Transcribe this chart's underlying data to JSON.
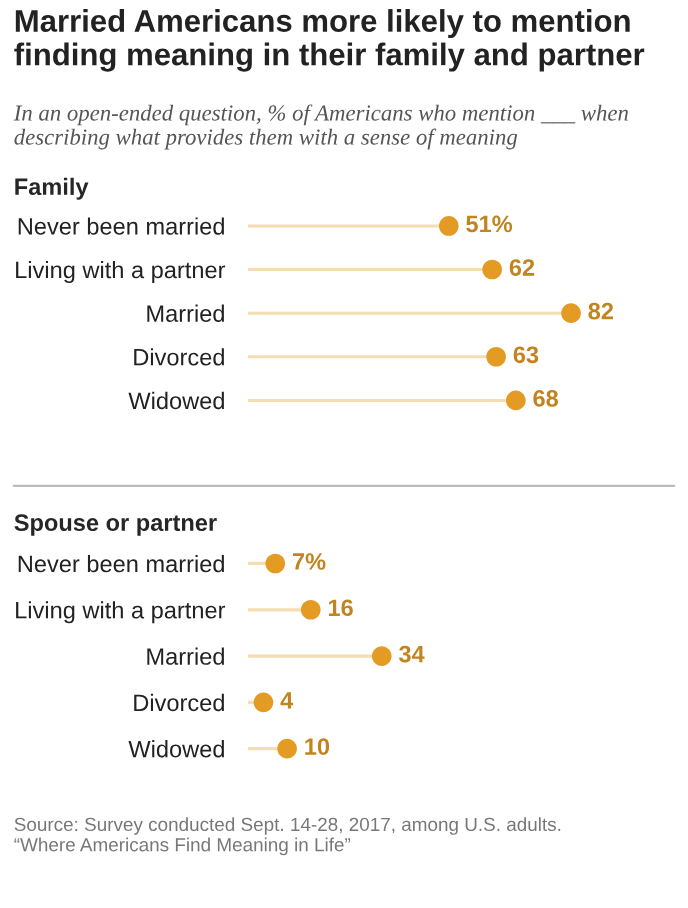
{
  "chart_data": [
    {
      "type": "lollipop",
      "orientation": "horizontal",
      "title": "Married Americans more likely to mention finding meaning in their family and partner",
      "subtitle": "In an open-ended question, % of Americans who mention ___ when describing what provides them with a sense of meaning",
      "ylabel": "Family",
      "tick_labels": "y",
      "categories": [
        "Never been married",
        "Living with a partner",
        "Married",
        "Divorced",
        "Widowed"
      ],
      "series": [
        {
          "color": "#e39b24",
          "values": [
            51,
            62,
            82,
            63,
            68
          ],
          "value_labels": [
            "51%",
            "62",
            "82",
            "63",
            "68"
          ]
        }
      ]
    },
    {
      "type": "lollipop",
      "orientation": "horizontal",
      "ylabel": "Spouse or partner",
      "tick_labels": "y",
      "categories": [
        "Never been married",
        "Living with a partner",
        "Married",
        "Divorced",
        "Widowed"
      ],
      "series": [
        {
          "color": "#e39b24",
          "values": [
            7,
            16,
            34,
            4,
            10
          ],
          "value_labels": [
            "7%",
            "16",
            "34",
            "4",
            "10"
          ]
        }
      ],
      "annotations": [
        "Source: Survey conducted Sept. 14-28, 2017, among U.S. adults.\n“Where Americans Find Meaning in Life”"
      ]
    }
  ]
}
